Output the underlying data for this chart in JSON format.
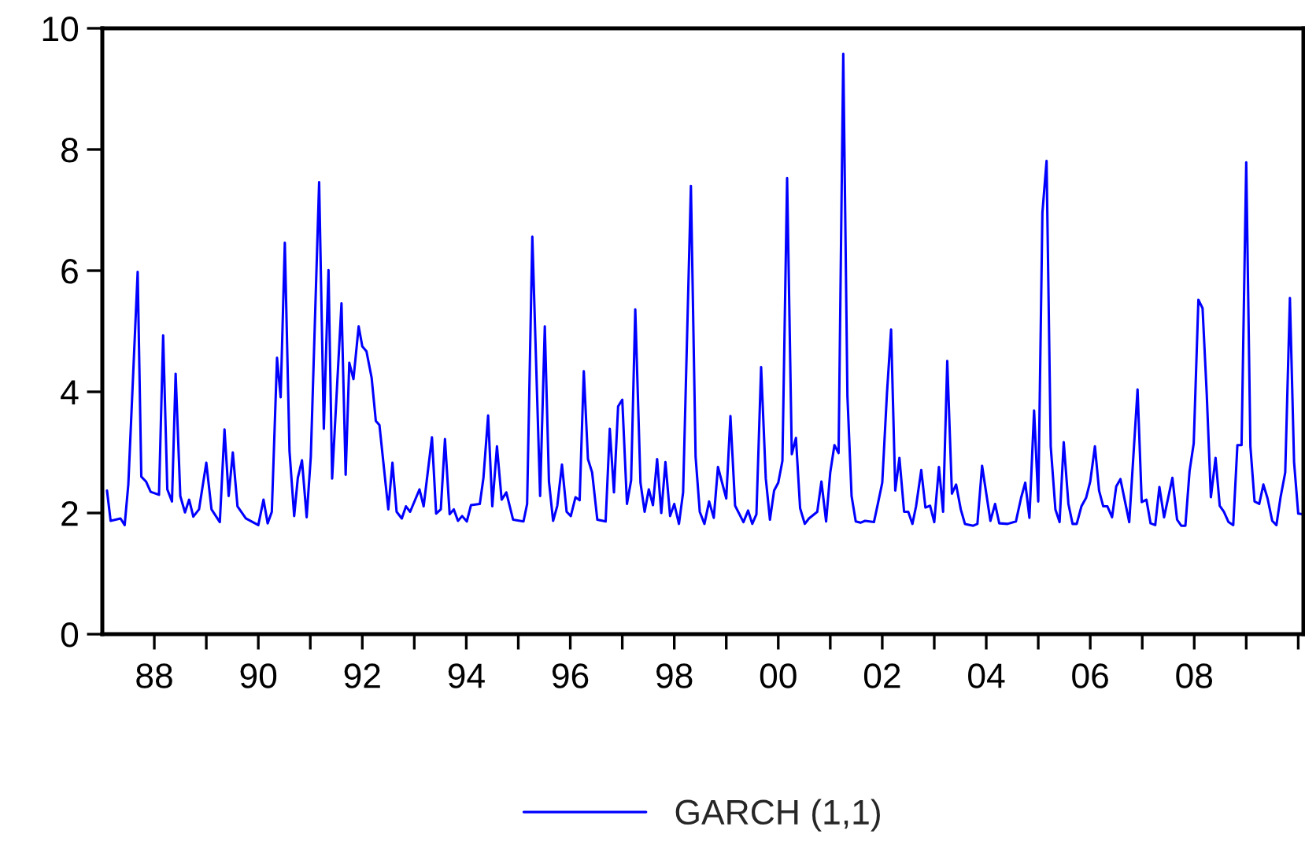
{
  "chart_data": {
    "type": "line",
    "x": [
      1987.09,
      1987.16,
      1987.35,
      1987.43,
      1987.5,
      1987.68,
      1987.75,
      1987.84,
      1987.93,
      1988.09,
      1988.17,
      1988.25,
      1988.34,
      1988.41,
      1988.5,
      1988.59,
      1988.67,
      1988.75,
      1988.86,
      1989.0,
      1989.1,
      1989.26,
      1989.35,
      1989.43,
      1989.51,
      1989.6,
      1989.76,
      1990.0,
      1990.1,
      1990.18,
      1990.26,
      1990.36,
      1990.43,
      1990.51,
      1990.6,
      1990.69,
      1990.76,
      1990.84,
      1990.93,
      1991.01,
      1991.17,
      1991.26,
      1991.35,
      1991.42,
      1991.6,
      1991.68,
      1991.75,
      1991.83,
      1991.93,
      1992.0,
      1992.08,
      1992.18,
      1992.26,
      1992.33,
      1992.5,
      1992.58,
      1992.66,
      1992.76,
      1992.84,
      1992.92,
      1993.1,
      1993.18,
      1993.34,
      1993.42,
      1993.51,
      1993.59,
      1993.68,
      1993.76,
      1993.84,
      1993.92,
      1994.01,
      1994.09,
      1994.26,
      1994.33,
      1994.42,
      1994.5,
      1994.59,
      1994.68,
      1994.77,
      1994.9,
      1995.1,
      1995.17,
      1995.27,
      1995.42,
      1995.51,
      1995.59,
      1995.67,
      1995.75,
      1995.84,
      1995.93,
      1996.01,
      1996.1,
      1996.18,
      1996.26,
      1996.34,
      1996.42,
      1996.52,
      1996.68,
      1996.76,
      1996.84,
      1996.92,
      1997.0,
      1997.09,
      1997.17,
      1997.25,
      1997.35,
      1997.43,
      1997.51,
      1997.59,
      1997.67,
      1997.75,
      1997.83,
      1997.92,
      1998.0,
      1998.09,
      1998.17,
      1998.32,
      1998.41,
      1998.49,
      1998.58,
      1998.67,
      1998.76,
      1998.84,
      1999.0,
      1999.08,
      1999.17,
      1999.33,
      1999.42,
      1999.5,
      1999.58,
      1999.67,
      1999.76,
      1999.84,
      1999.92,
      2000.0,
      2000.08,
      2000.17,
      2000.26,
      2000.34,
      2000.42,
      2000.51,
      2000.59,
      2000.75,
      2000.83,
      2000.92,
      2001.0,
      2001.08,
      2001.16,
      2001.25,
      2001.33,
      2001.41,
      2001.49,
      2001.58,
      2001.67,
      2001.84,
      2001.92,
      2002.0,
      2002.09,
      2002.17,
      2002.25,
      2002.33,
      2002.42,
      2002.5,
      2002.58,
      2002.65,
      2002.75,
      2002.83,
      2002.92,
      2003.0,
      2003.09,
      2003.17,
      2003.25,
      2003.34,
      2003.42,
      2003.51,
      2003.59,
      2003.75,
      2003.83,
      2003.92,
      2004.08,
      2004.17,
      2004.25,
      2004.41,
      2004.57,
      2004.67,
      2004.75,
      2004.83,
      2004.92,
      2005.0,
      2005.08,
      2005.16,
      2005.24,
      2005.33,
      2005.41,
      2005.49,
      2005.58,
      2005.66,
      2005.74,
      2005.83,
      2005.92,
      2006.0,
      2006.09,
      2006.17,
      2006.25,
      2006.33,
      2006.42,
      2006.5,
      2006.58,
      2006.75,
      2006.91,
      2006.99,
      2007.08,
      2007.16,
      2007.25,
      2007.33,
      2007.42,
      2007.58,
      2007.67,
      2007.75,
      2007.83,
      2007.91,
      2007.99,
      2008.08,
      2008.16,
      2008.24,
      2008.32,
      2008.41,
      2008.49,
      2008.57,
      2008.66,
      2008.75,
      2008.83,
      2008.91,
      2009.0,
      2009.08,
      2009.16,
      2009.25,
      2009.33,
      2009.41,
      2009.5,
      2009.58,
      2009.66,
      2009.75,
      2009.84,
      2009.92,
      2010.0,
      2010.08
    ],
    "series": [
      {
        "name": "GARCH (1,1)",
        "color": "#0000ff",
        "values": [
          2.37,
          1.87,
          1.91,
          1.8,
          2.47,
          5.98,
          2.6,
          2.52,
          2.35,
          2.3,
          4.93,
          2.39,
          2.19,
          4.3,
          2.28,
          2.01,
          2.22,
          1.94,
          2.06,
          2.83,
          2.06,
          1.85,
          3.38,
          2.28,
          3.0,
          2.11,
          1.91,
          1.8,
          2.22,
          1.83,
          2.02,
          4.56,
          3.91,
          6.46,
          3.02,
          1.95,
          2.58,
          2.87,
          1.93,
          2.93,
          7.46,
          3.39,
          6.01,
          2.57,
          5.46,
          2.63,
          4.48,
          4.21,
          5.08,
          4.75,
          4.67,
          4.23,
          3.52,
          3.45,
          2.06,
          2.83,
          2.02,
          1.91,
          2.11,
          2.02,
          2.39,
          2.11,
          3.25,
          1.99,
          2.06,
          3.22,
          1.98,
          2.06,
          1.87,
          1.95,
          1.86,
          2.13,
          2.15,
          2.58,
          3.61,
          2.11,
          3.1,
          2.22,
          2.34,
          1.89,
          1.86,
          2.15,
          6.56,
          2.28,
          5.08,
          2.52,
          1.87,
          2.12,
          2.8,
          2.02,
          1.95,
          2.26,
          2.21,
          4.34,
          2.89,
          2.67,
          1.89,
          1.86,
          3.39,
          2.34,
          3.76,
          3.87,
          2.15,
          2.54,
          5.36,
          2.5,
          2.02,
          2.39,
          2.13,
          2.89,
          2.0,
          2.84,
          1.95,
          2.15,
          1.82,
          2.34,
          7.4,
          2.93,
          2.02,
          1.82,
          2.19,
          1.92,
          2.76,
          2.24,
          3.6,
          2.12,
          1.85,
          2.04,
          1.82,
          1.98,
          4.41,
          2.57,
          1.89,
          2.37,
          2.5,
          2.86,
          7.53,
          2.97,
          3.24,
          2.08,
          1.82,
          1.91,
          2.02,
          2.52,
          1.86,
          2.67,
          3.12,
          2.99,
          9.58,
          3.93,
          2.28,
          1.86,
          1.84,
          1.87,
          1.85,
          2.17,
          2.5,
          3.97,
          5.03,
          2.37,
          2.91,
          2.02,
          2.02,
          1.82,
          2.11,
          2.71,
          2.09,
          2.12,
          1.85,
          2.76,
          2.02,
          4.51,
          2.32,
          2.47,
          2.06,
          1.82,
          1.79,
          1.82,
          2.78,
          1.87,
          2.15,
          1.83,
          1.82,
          1.86,
          2.25,
          2.5,
          1.92,
          3.69,
          2.19,
          6.96,
          7.81,
          3.1,
          2.06,
          1.85,
          3.17,
          2.15,
          1.82,
          1.82,
          2.11,
          2.25,
          2.52,
          3.1,
          2.37,
          2.11,
          2.11,
          1.93,
          2.44,
          2.56,
          1.85,
          4.04,
          2.18,
          2.22,
          1.83,
          1.8,
          2.43,
          1.93,
          2.58,
          1.89,
          1.79,
          1.79,
          2.69,
          3.15,
          5.52,
          5.38,
          3.97,
          2.26,
          2.91,
          2.12,
          2.02,
          1.85,
          1.8,
          3.12,
          3.12,
          7.79,
          3.1,
          2.19,
          2.15,
          2.47,
          2.24,
          1.87,
          1.8,
          2.26,
          2.67,
          5.55,
          2.84,
          1.99,
          1.98
        ]
      }
    ],
    "xlim": [
      1987.0,
      2010.1
    ],
    "xticks": [
      {
        "value": 1988,
        "label": "88"
      },
      {
        "value": 1989,
        "label": null
      },
      {
        "value": 1990,
        "label": "90"
      },
      {
        "value": 1991,
        "label": null
      },
      {
        "value": 1992,
        "label": "92"
      },
      {
        "value": 1993,
        "label": null
      },
      {
        "value": 1994,
        "label": "94"
      },
      {
        "value": 1995,
        "label": null
      },
      {
        "value": 1996,
        "label": "96"
      },
      {
        "value": 1997,
        "label": null
      },
      {
        "value": 1998,
        "label": "98"
      },
      {
        "value": 1999,
        "label": null
      },
      {
        "value": 2000,
        "label": "00"
      },
      {
        "value": 2001,
        "label": null
      },
      {
        "value": 2002,
        "label": "02"
      },
      {
        "value": 2003,
        "label": null
      },
      {
        "value": 2004,
        "label": "04"
      },
      {
        "value": 2005,
        "label": null
      },
      {
        "value": 2006,
        "label": "06"
      },
      {
        "value": 2007,
        "label": null
      },
      {
        "value": 2008,
        "label": "08"
      },
      {
        "value": 2009,
        "label": null
      },
      {
        "value": 2010,
        "label": null
      }
    ],
    "ylim": [
      0,
      10
    ],
    "yticks": [
      0,
      2,
      4,
      6,
      8,
      10
    ],
    "grid": false,
    "legend": "bottom",
    "marker": "none",
    "line_style": "solid"
  }
}
